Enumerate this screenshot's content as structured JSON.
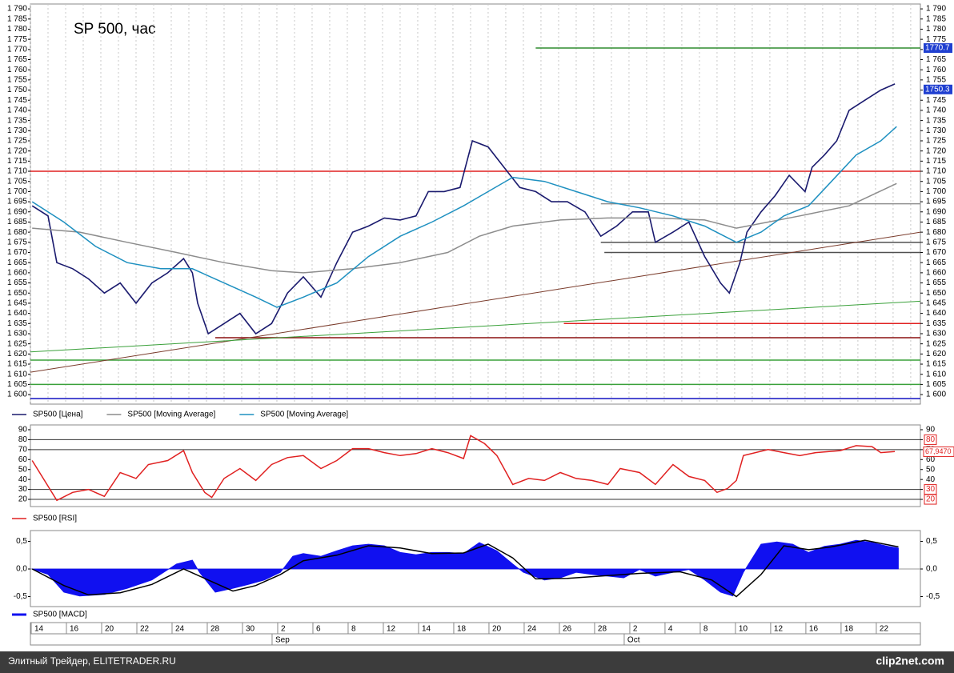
{
  "chart_data": [
    {
      "type": "line",
      "title": "SP 500, час",
      "xlim": [
        0,
        50.55
      ],
      "ylim": [
        1595.3,
        1792.4
      ],
      "vgrid": true,
      "yticks": [
        {
          "value": 1600,
          "label": "1 600"
        },
        {
          "value": 1605,
          "label": "1 605"
        },
        {
          "value": 1610,
          "label": "1 610"
        },
        {
          "value": 1615,
          "label": "1 615"
        },
        {
          "value": 1620,
          "label": "1 620"
        },
        {
          "value": 1625,
          "label": "1 625"
        },
        {
          "value": 1630,
          "label": "1 630"
        },
        {
          "value": 1635,
          "label": "1 635"
        },
        {
          "value": 1640,
          "label": "1 640"
        },
        {
          "value": 1645,
          "label": "1 645"
        },
        {
          "value": 1650,
          "label": "1 650"
        },
        {
          "value": 1655,
          "label": "1 655"
        },
        {
          "value": 1660,
          "label": "1 660"
        },
        {
          "value": 1665,
          "label": "1 665"
        },
        {
          "value": 1670,
          "label": "1 670"
        },
        {
          "value": 1675,
          "label": "1 675"
        },
        {
          "value": 1680,
          "label": "1 680"
        },
        {
          "value": 1685,
          "label": "1 685"
        },
        {
          "value": 1690,
          "label": "1 690"
        },
        {
          "value": 1695,
          "label": "1 695"
        },
        {
          "value": 1700,
          "label": "1 700"
        },
        {
          "value": 1705,
          "label": "1 705"
        },
        {
          "value": 1710,
          "label": "1 710"
        },
        {
          "value": 1715,
          "label": "1 715"
        },
        {
          "value": 1720,
          "label": "1 720"
        },
        {
          "value": 1725,
          "label": "1 725"
        },
        {
          "value": 1730,
          "label": "1 730"
        },
        {
          "value": 1735,
          "label": "1 735"
        },
        {
          "value": 1740,
          "label": "1 740"
        },
        {
          "value": 1745,
          "label": "1 745"
        },
        {
          "value": 1750,
          "label": "1 750"
        },
        {
          "value": 1755,
          "label": "1 755"
        },
        {
          "value": 1760,
          "label": "1 760"
        },
        {
          "value": 1765,
          "label": "1 765"
        },
        {
          "value": 1770,
          "label": "1 770"
        },
        {
          "value": 1775,
          "label": "1 775"
        },
        {
          "value": 1780,
          "label": "1 780"
        },
        {
          "value": 1785,
          "label": "1 785"
        },
        {
          "value": 1790,
          "label": "1 790"
        }
      ],
      "series": [
        {
          "name": "SP500 [Цена]",
          "color": "#1a1a6e",
          "x": [
            0.1,
            1.0,
            1.5,
            2.4,
            3.3,
            4.2,
            5.1,
            6.0,
            6.9,
            7.8,
            8.7,
            9.2,
            9.5,
            10.1,
            11.0,
            11.9,
            12.8,
            13.7,
            14.6,
            15.5,
            16.5,
            17.4,
            18.3,
            19.2,
            20.1,
            21.0,
            21.9,
            22.6,
            23.5,
            24.4,
            25.1,
            26.0,
            26.9,
            27.8,
            28.7,
            29.6,
            30.5,
            31.5,
            32.4,
            33.3,
            34.2,
            35.1,
            35.5,
            36.5,
            37.4,
            38.3,
            39.2,
            39.7,
            40.3,
            40.7,
            41.5,
            42.3,
            43.1,
            44.0,
            44.4,
            45.1,
            45.8,
            46.5,
            47.4,
            48.3,
            49.1
          ],
          "values": [
            1693,
            1688,
            1665,
            1662,
            1657,
            1650,
            1655,
            1645,
            1655,
            1660,
            1667,
            1660,
            1645,
            1630,
            1635,
            1640,
            1630,
            1635,
            1650,
            1658,
            1648,
            1665,
            1680,
            1683,
            1687,
            1686,
            1688,
            1700,
            1700,
            1702,
            1725,
            1722,
            1712,
            1702,
            1700,
            1695,
            1695,
            1690,
            1678,
            1683,
            1690,
            1690,
            1675,
            1680,
            1685,
            1668,
            1655,
            1650,
            1665,
            1680,
            1690,
            1698,
            1708,
            1700,
            1712,
            1718,
            1725,
            1740,
            1745,
            1750,
            1753
          ]
        },
        {
          "name": "SP500 [Moving Average]",
          "color": "#8c8c8c",
          "x": [
            0.1,
            2.8,
            5.5,
            8.3,
            11.0,
            13.7,
            15.5,
            18.3,
            21.0,
            23.7,
            25.5,
            27.4,
            30.1,
            32.8,
            35.5,
            38.3,
            40.1,
            41.9,
            43.7,
            46.5,
            49.2
          ],
          "values": [
            1682,
            1680,
            1675,
            1670,
            1665,
            1661,
            1660,
            1662,
            1665,
            1670,
            1678,
            1683,
            1686,
            1687,
            1687,
            1686,
            1682,
            1685,
            1688,
            1693,
            1704
          ]
        },
        {
          "name": "SP500 [Moving Average]",
          "color": "#1e90c0",
          "x": [
            0.1,
            1.9,
            3.7,
            5.5,
            7.4,
            9.2,
            11.0,
            12.8,
            14.0,
            15.5,
            17.4,
            19.2,
            21.0,
            22.8,
            24.6,
            26.0,
            27.4,
            29.2,
            31.0,
            32.8,
            34.6,
            36.5,
            38.3,
            40.1,
            41.5,
            42.8,
            44.2,
            45.5,
            46.9,
            48.3,
            49.2
          ],
          "values": [
            1695,
            1685,
            1673,
            1665,
            1662,
            1662,
            1655,
            1648,
            1643,
            1648,
            1655,
            1668,
            1678,
            1685,
            1693,
            1700,
            1707,
            1705,
            1700,
            1695,
            1692,
            1688,
            1683,
            1675,
            1680,
            1688,
            1693,
            1705,
            1718,
            1725,
            1732
          ]
        }
      ],
      "levels": [
        {
          "value": 1770.7,
          "from": 28.7,
          "color": "#2e8b2e"
        },
        {
          "value": 1710,
          "from": 0,
          "color": "#e02020"
        },
        {
          "value": 1694,
          "from": 32.4,
          "color": "#909090"
        },
        {
          "value": 1675,
          "from": 32.4,
          "color": "#505050"
        },
        {
          "value": 1670,
          "from": 32.6,
          "color": "#505050"
        },
        {
          "value": 1635,
          "from": 30.3,
          "color": "#e02020"
        },
        {
          "value": 1628,
          "from": 10.5,
          "color": "#8b1010"
        },
        {
          "value": 1617,
          "from": 0,
          "color": "#3aa03a"
        },
        {
          "value": 1605,
          "from": 0,
          "color": "#3aa03a"
        },
        {
          "value": 1598,
          "from": 0,
          "color": "#1010c0"
        }
      ],
      "trendlines": [
        {
          "from": [
            0,
            1611
          ],
          "to": [
            50.55,
            1680
          ],
          "color": "#7a3b2b"
        },
        {
          "from": [
            0,
            1621
          ],
          "to": [
            50.55,
            1646
          ],
          "color": "#3aa03a"
        }
      ],
      "price_labels": [
        1770.7,
        1750.3
      ],
      "price_label_color": "#1f3fd0"
    },
    {
      "type": "line",
      "xlim": [
        0,
        50.55
      ],
      "ylim": [
        12.8,
        94.8
      ],
      "yticks": [
        20,
        30,
        40,
        50,
        60,
        70,
        80,
        90
      ],
      "ref_lines": [
        80,
        70,
        30,
        20
      ],
      "boxed_ticks": [
        80,
        30,
        20
      ],
      "series": [
        {
          "name": "SP500 [RSI]",
          "color": "#e02020",
          "x": [
            0.1,
            0.8,
            1.5,
            2.4,
            3.3,
            4.2,
            5.1,
            6.0,
            6.7,
            7.8,
            8.7,
            9.2,
            9.9,
            10.3,
            11.0,
            11.9,
            12.8,
            13.7,
            14.6,
            15.5,
            16.5,
            17.4,
            18.3,
            19.2,
            20.1,
            21.0,
            21.9,
            22.8,
            23.7,
            24.6,
            25.0,
            25.8,
            26.5,
            27.4,
            28.3,
            29.2,
            30.1,
            31.0,
            31.9,
            32.8,
            33.5,
            34.6,
            35.5,
            36.5,
            37.4,
            38.3,
            39.0,
            39.6,
            40.1,
            40.5,
            41.9,
            42.8,
            43.7,
            44.6,
            46.0,
            46.9,
            47.8,
            48.3,
            49.1
          ],
          "values": [
            59,
            39,
            19,
            27,
            30,
            23,
            47,
            41,
            55,
            59,
            69,
            47,
            27,
            22,
            41,
            51,
            39,
            55,
            62,
            64,
            51,
            59,
            71,
            71,
            67,
            64,
            66,
            71,
            67,
            61,
            84,
            76,
            64,
            35,
            41,
            39,
            47,
            41,
            39,
            35,
            51,
            47,
            35,
            55,
            43,
            39,
            27,
            31,
            39,
            64,
            70,
            67,
            64,
            67,
            69,
            74,
            73,
            67,
            68
          ]
        }
      ],
      "last_value": {
        "value": 67.947,
        "label": "67,9470"
      }
    },
    {
      "type": "area",
      "xlim": [
        0,
        50.55
      ],
      "ylim": [
        -0.681,
        0.696
      ],
      "yticks": [
        {
          "value": 0.5,
          "label": "0,5"
        },
        {
          "value": 0,
          "label": "0,0"
        },
        {
          "value": -0.5,
          "label": "-0,5"
        }
      ],
      "series": [
        {
          "name": "SP500 [MACD]",
          "color": "#1010f0",
          "x": [
            0.1,
            1.0,
            1.9,
            2.8,
            4.2,
            5.5,
            6.9,
            8.3,
            9.2,
            9.6,
            10.5,
            11.5,
            12.4,
            13.3,
            14.2,
            14.9,
            15.5,
            16.5,
            17.4,
            18.3,
            19.2,
            20.1,
            21.0,
            21.9,
            22.8,
            23.7,
            24.6,
            25.5,
            26.5,
            27.4,
            28.0,
            29.2,
            30.1,
            31.0,
            31.9,
            32.8,
            33.7,
            34.6,
            35.5,
            36.5,
            37.4,
            38.3,
            39.2,
            39.9,
            40.5,
            41.5,
            42.4,
            43.3,
            44.2,
            45.1,
            46.0,
            46.9,
            47.8,
            48.7,
            49.3
          ],
          "values": [
            0,
            -0.1,
            -0.42,
            -0.49,
            -0.46,
            -0.35,
            -0.2,
            0.09,
            0.16,
            -0.06,
            -0.42,
            -0.35,
            -0.28,
            -0.2,
            -0.06,
            0.23,
            0.28,
            0.23,
            0.33,
            0.42,
            0.45,
            0.42,
            0.3,
            0.26,
            0.3,
            0.3,
            0.28,
            0.48,
            0.33,
            0.09,
            -0.06,
            -0.2,
            -0.16,
            -0.06,
            -0.1,
            -0.13,
            -0.16,
            -0.01,
            -0.13,
            -0.06,
            -0.01,
            -0.2,
            -0.42,
            -0.49,
            -0.06,
            0.45,
            0.49,
            0.45,
            0.3,
            0.41,
            0.45,
            0.52,
            0.48,
            0.41,
            0.38
          ]
        },
        {
          "color": "#000000",
          "x": [
            0.1,
            1.9,
            3.3,
            5.1,
            6.9,
            8.7,
            10.1,
            11.5,
            12.8,
            14.2,
            15.5,
            17.4,
            19.2,
            21.0,
            22.8,
            24.6,
            26.0,
            27.4,
            28.7,
            30.5,
            32.8,
            34.6,
            36.9,
            38.7,
            40.1,
            41.5,
            42.8,
            44.2,
            45.5,
            47.4,
            49.3
          ],
          "values": [
            0,
            -0.3,
            -0.47,
            -0.43,
            -0.28,
            0,
            -0.2,
            -0.4,
            -0.3,
            -0.1,
            0.15,
            0.25,
            0.42,
            0.38,
            0.28,
            0.29,
            0.45,
            0.2,
            -0.18,
            -0.17,
            -0.12,
            -0.08,
            -0.05,
            -0.2,
            -0.5,
            -0.1,
            0.42,
            0.35,
            0.4,
            0.52,
            0.4
          ]
        }
      ],
      "categories": [
        "14",
        null,
        "16",
        null,
        "20",
        null,
        "22",
        null,
        "24",
        null,
        "28",
        null,
        "30",
        null,
        "2",
        null,
        "6",
        null,
        "8",
        null,
        "12",
        null,
        "14",
        null,
        "18",
        null,
        "20",
        null,
        "24",
        null,
        "26",
        null,
        "28",
        null,
        "2",
        null,
        "4",
        null,
        "8",
        null,
        "10",
        null,
        "12",
        null,
        "16",
        null,
        "18",
        null,
        "22",
        null,
        null
      ],
      "months": [
        null,
        null,
        null,
        null,
        null,
        null,
        null,
        null,
        null,
        null,
        null,
        null,
        null,
        null,
        "Sep",
        null,
        null,
        null,
        null,
        null,
        null,
        null,
        null,
        null,
        null,
        null,
        null,
        null,
        null,
        null,
        null,
        null,
        null,
        null,
        "Oct",
        null,
        null,
        null,
        null,
        null,
        null,
        null,
        null,
        null,
        null,
        null,
        null,
        null,
        null,
        null,
        null
      ]
    }
  ],
  "footer": {
    "source": "Элитный Трейдер, ELITETRADER.RU",
    "watermark": "clip2net.com"
  }
}
